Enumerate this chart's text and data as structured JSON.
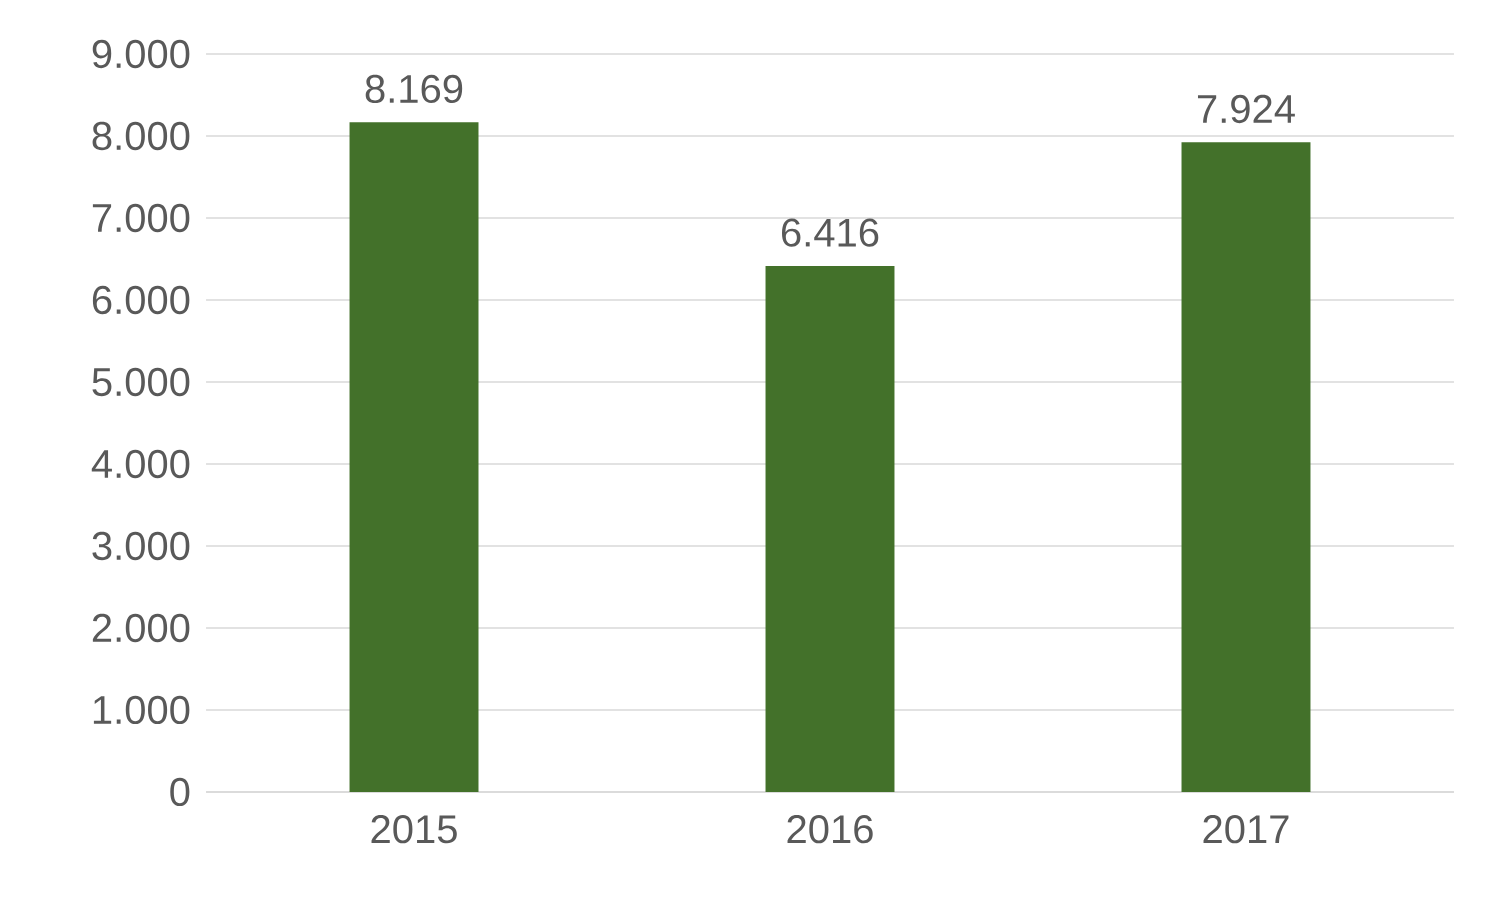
{
  "chart_data": {
    "type": "bar",
    "categories": [
      "2015",
      "2016",
      "2017"
    ],
    "values": [
      8169,
      6416,
      7924
    ],
    "value_labels": [
      "8.169",
      "6.416",
      "7.924"
    ],
    "color": "#43712a",
    "ylim": [
      0,
      9000
    ],
    "yticks": [
      {
        "value": 0,
        "label": "0"
      },
      {
        "value": 1000,
        "label": "1.000"
      },
      {
        "value": 2000,
        "label": "2.000"
      },
      {
        "value": 3000,
        "label": "3.000"
      },
      {
        "value": 4000,
        "label": "4.000"
      },
      {
        "value": 5000,
        "label": "5.000"
      },
      {
        "value": 6000,
        "label": "6.000"
      },
      {
        "value": 7000,
        "label": "7.000"
      },
      {
        "value": 8000,
        "label": "8.000"
      },
      {
        "value": 9000,
        "label": "9.000"
      }
    ],
    "grid": "y"
  }
}
